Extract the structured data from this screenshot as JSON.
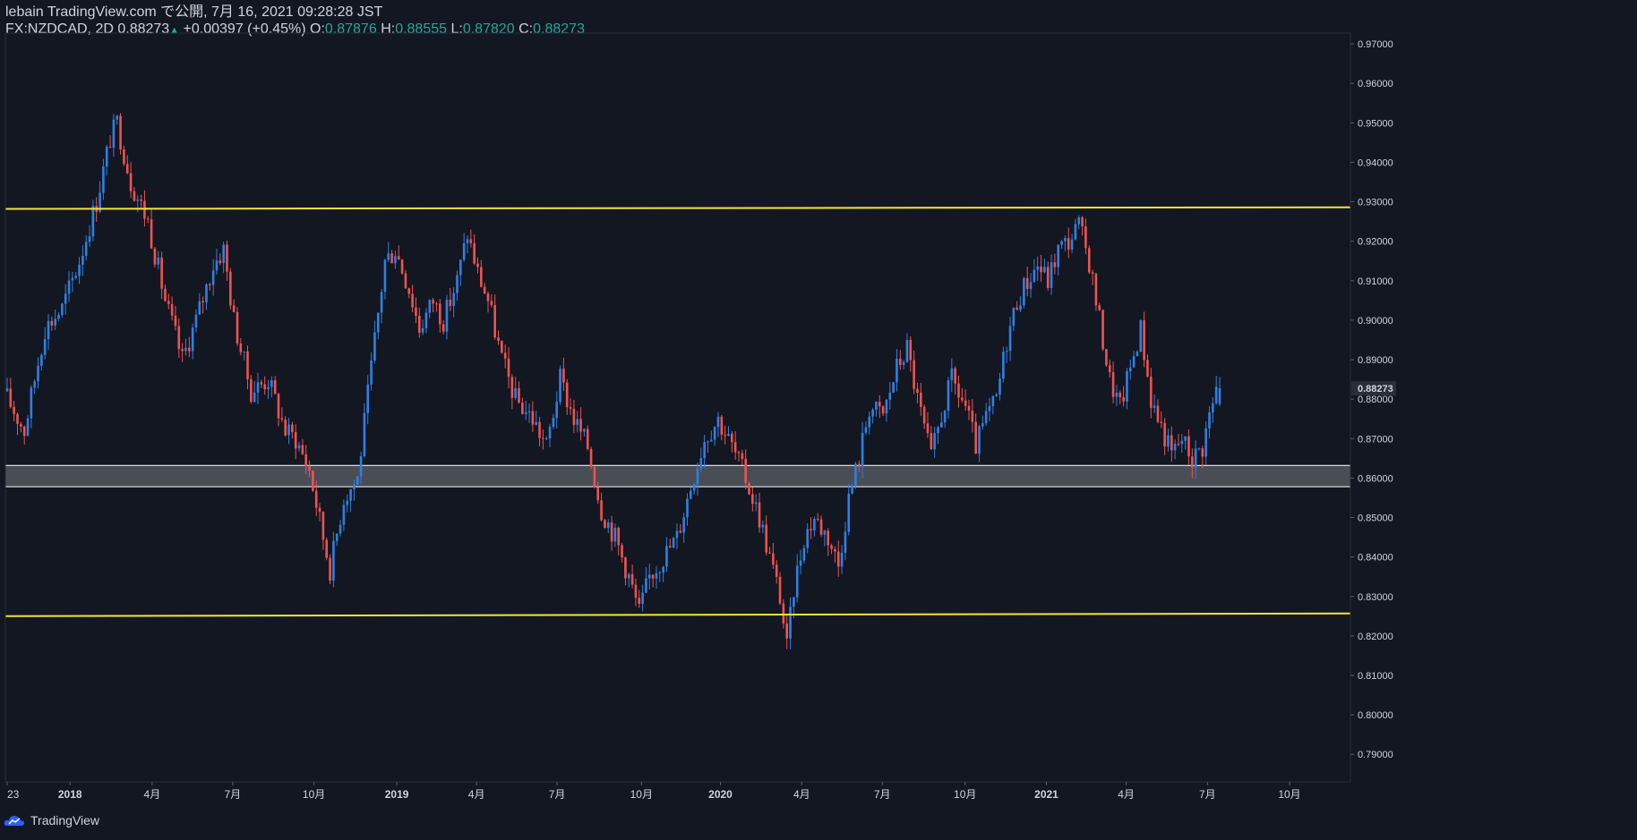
{
  "header": {
    "publish_line": "lebain TradingView.com で公開, 7月 16, 2021 09:28:28 JST",
    "symbol": "FX:NZDCAD, 2D",
    "last": "0.88273",
    "change": "+0.00397 (+0.45%)",
    "o_label": "O:",
    "o_value": "0.87876",
    "h_label": "H:",
    "h_value": "0.88555",
    "l_label": "L:",
    "l_value": "0.87820",
    "c_label": "C:",
    "c_value": "0.88273"
  },
  "footer": {
    "brand": "TradingView",
    "icon": "tradingview-cloud-icon"
  },
  "colors": {
    "background": "#131722",
    "up": "#2f80e2",
    "down": "#ef5350",
    "level_line": "#f5e33c",
    "zone": "#b0b3b8",
    "price_badge": "#d1d4dc",
    "axis_text": "#d1d4dc"
  },
  "chart_data": {
    "type": "candlestick",
    "symbol": "FX:NZDCAD",
    "interval": "2D",
    "ylim": [
      0.7862,
      0.9716
    ],
    "y_ticks": [
      "0.97000",
      "0.96000",
      "0.95000",
      "0.94000",
      "0.93000",
      "0.92000",
      "0.91000",
      "0.90000",
      "0.89000",
      "0.88000",
      "0.87000",
      "0.86000",
      "0.85000",
      "0.84000",
      "0.83000",
      "0.82000",
      "0.81000",
      "0.80000",
      "0.79000"
    ],
    "x_ticks": [
      "23",
      "2018",
      "4月",
      "7月",
      "10月",
      "2019",
      "4月",
      "7月",
      "10月",
      "2020",
      "4月",
      "7月",
      "10月",
      "2021",
      "4月",
      "7月",
      "10月"
    ],
    "last_price_label": "0.88273",
    "levels": [
      {
        "kind": "line",
        "start": 0.9282,
        "end": 0.9286
      },
      {
        "kind": "line",
        "start": 0.825,
        "end": 0.8257
      }
    ],
    "zones": [
      {
        "from": 0.8578,
        "to": 0.8632
      }
    ],
    "path_points": [
      [
        0,
        0.882
      ],
      [
        6,
        0.872
      ],
      [
        12,
        0.898
      ],
      [
        17,
        0.903
      ],
      [
        22,
        0.915
      ],
      [
        27,
        0.93
      ],
      [
        31,
        0.946
      ],
      [
        33,
        0.95
      ],
      [
        37,
        0.935
      ],
      [
        42,
        0.925
      ],
      [
        47,
        0.905
      ],
      [
        52,
        0.89
      ],
      [
        56,
        0.9
      ],
      [
        61,
        0.914
      ],
      [
        64,
        0.918
      ],
      [
        67,
        0.9
      ],
      [
        72,
        0.882
      ],
      [
        77,
        0.885
      ],
      [
        82,
        0.872
      ],
      [
        85,
        0.87
      ],
      [
        89,
        0.862
      ],
      [
        93,
        0.845
      ],
      [
        95,
        0.837
      ],
      [
        99,
        0.855
      ],
      [
        103,
        0.86
      ],
      [
        107,
        0.888
      ],
      [
        111,
        0.915
      ],
      [
        114,
        0.918
      ],
      [
        118,
        0.908
      ],
      [
        121,
        0.898
      ],
      [
        125,
        0.905
      ],
      [
        128,
        0.9
      ],
      [
        132,
        0.91
      ],
      [
        135,
        0.922
      ],
      [
        138,
        0.912
      ],
      [
        141,
        0.905
      ],
      [
        145,
        0.89
      ],
      [
        149,
        0.88
      ],
      [
        154,
        0.875
      ],
      [
        158,
        0.868
      ],
      [
        162,
        0.885
      ],
      [
        166,
        0.875
      ],
      [
        170,
        0.868
      ],
      [
        174,
        0.852
      ],
      [
        178,
        0.845
      ],
      [
        182,
        0.835
      ],
      [
        185,
        0.826
      ],
      [
        188,
        0.835
      ],
      [
        192,
        0.84
      ],
      [
        196,
        0.845
      ],
      [
        200,
        0.858
      ],
      [
        204,
        0.87
      ],
      [
        208,
        0.875
      ],
      [
        212,
        0.868
      ],
      [
        216,
        0.86
      ],
      [
        220,
        0.85
      ],
      [
        223,
        0.84
      ],
      [
        226,
        0.83
      ],
      [
        228,
        0.817
      ],
      [
        230,
        0.832
      ],
      [
        233,
        0.845
      ],
      [
        236,
        0.85
      ],
      [
        240,
        0.845
      ],
      [
        243,
        0.838
      ],
      [
        246,
        0.855
      ],
      [
        249,
        0.865
      ],
      [
        252,
        0.878
      ],
      [
        256,
        0.876
      ],
      [
        260,
        0.888
      ],
      [
        263,
        0.893
      ],
      [
        266,
        0.88
      ],
      [
        270,
        0.865
      ],
      [
        273,
        0.876
      ],
      [
        276,
        0.885
      ],
      [
        280,
        0.878
      ],
      [
        283,
        0.868
      ],
      [
        286,
        0.875
      ],
      [
        289,
        0.88
      ],
      [
        292,
        0.895
      ],
      [
        295,
        0.905
      ],
      [
        298,
        0.91
      ],
      [
        301,
        0.914
      ],
      [
        304,
        0.91
      ],
      [
        307,
        0.918
      ],
      [
        310,
        0.92
      ],
      [
        313,
        0.924
      ],
      [
        316,
        0.915
      ],
      [
        319,
        0.9
      ],
      [
        322,
        0.885
      ],
      [
        325,
        0.878
      ],
      [
        328,
        0.888
      ],
      [
        331,
        0.898
      ],
      [
        334,
        0.88
      ],
      [
        337,
        0.873
      ],
      [
        340,
        0.866
      ],
      [
        343,
        0.87
      ],
      [
        346,
        0.865
      ],
      [
        349,
        0.868
      ],
      [
        351,
        0.876
      ],
      [
        353,
        0.882
      ]
    ],
    "last_candle": {
      "open": 0.87876,
      "high": 0.88555,
      "low": 0.8782,
      "close": 0.88273
    }
  }
}
